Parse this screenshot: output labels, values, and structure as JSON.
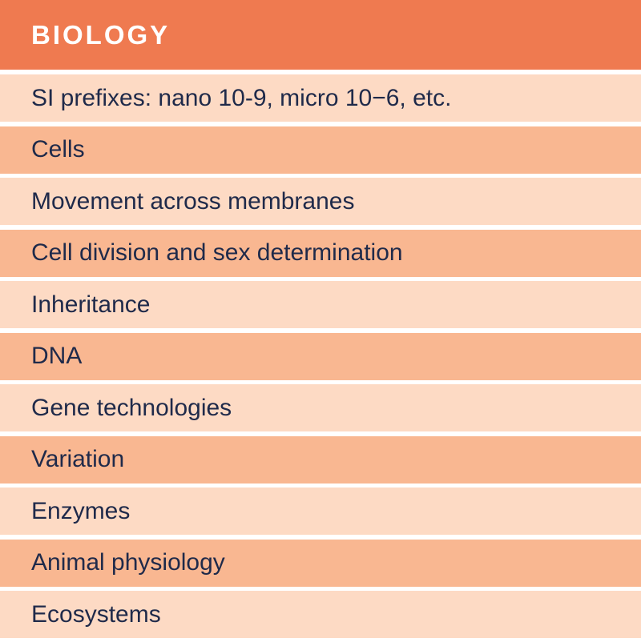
{
  "header": {
    "title": "BIOLOGY"
  },
  "colors": {
    "header_bg": "#ef7a50",
    "row_light": "#fddac4",
    "row_dark": "#f9b791",
    "text": "#1f2a4a"
  },
  "rows": [
    {
      "label": "SI prefixes: nano 10-9, micro 10−6, etc."
    },
    {
      "label": "Cells"
    },
    {
      "label": "Movement across membranes"
    },
    {
      "label": "Cell division and sex determination"
    },
    {
      "label": "Inheritance"
    },
    {
      "label": "DNA"
    },
    {
      "label": "Gene technologies"
    },
    {
      "label": "Variation"
    },
    {
      "label": "Enzymes"
    },
    {
      "label": "Animal physiology"
    },
    {
      "label": "Ecosystems"
    }
  ]
}
